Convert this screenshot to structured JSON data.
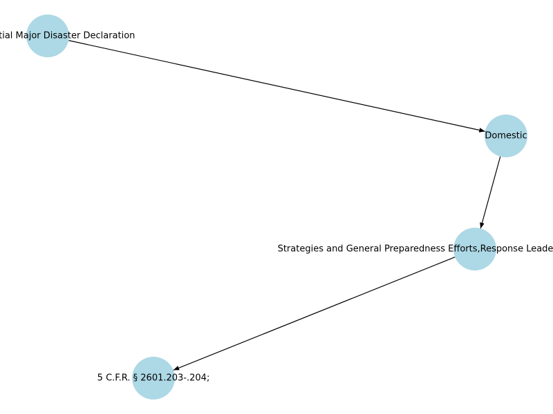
{
  "diagram": {
    "node_color": "#add8e6",
    "edge_color": "#000000",
    "nodes": [
      {
        "id": "n1",
        "label": "Presidential Major Disaster Declaration"
      },
      {
        "id": "n2",
        "label": "Domestic"
      },
      {
        "id": "n3",
        "label": "Strategies and General Preparedness Efforts,Response Leadership,Mission Assignments"
      },
      {
        "id": "n4",
        "label": "5 C.F.R. § 2601.203-.204;"
      }
    ],
    "edges": [
      {
        "from": "n1",
        "to": "n2"
      },
      {
        "from": "n2",
        "to": "n3"
      },
      {
        "from": "n3",
        "to": "n4"
      }
    ]
  }
}
